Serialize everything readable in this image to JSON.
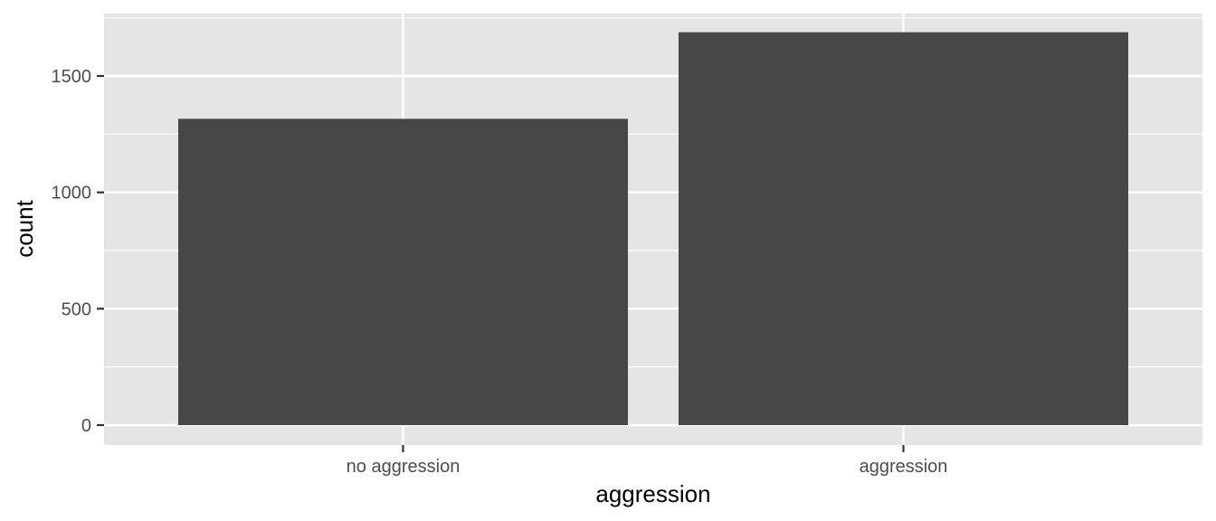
{
  "chart_data": {
    "type": "bar",
    "categories": [
      "no aggression",
      "aggression"
    ],
    "values": [
      1316,
      1688
    ],
    "xlabel": "aggression",
    "ylabel": "count",
    "ylim": [
      0,
      1770
    ],
    "y_ticks": [
      0,
      500,
      1000,
      1500
    ],
    "grid": true,
    "colors": {
      "panel_background": "#e5e5e5",
      "grid_line": "#ffffff",
      "bar_fill": "#474747",
      "tick_label": "#4d4d4d",
      "tick_mark": "#333333"
    }
  }
}
